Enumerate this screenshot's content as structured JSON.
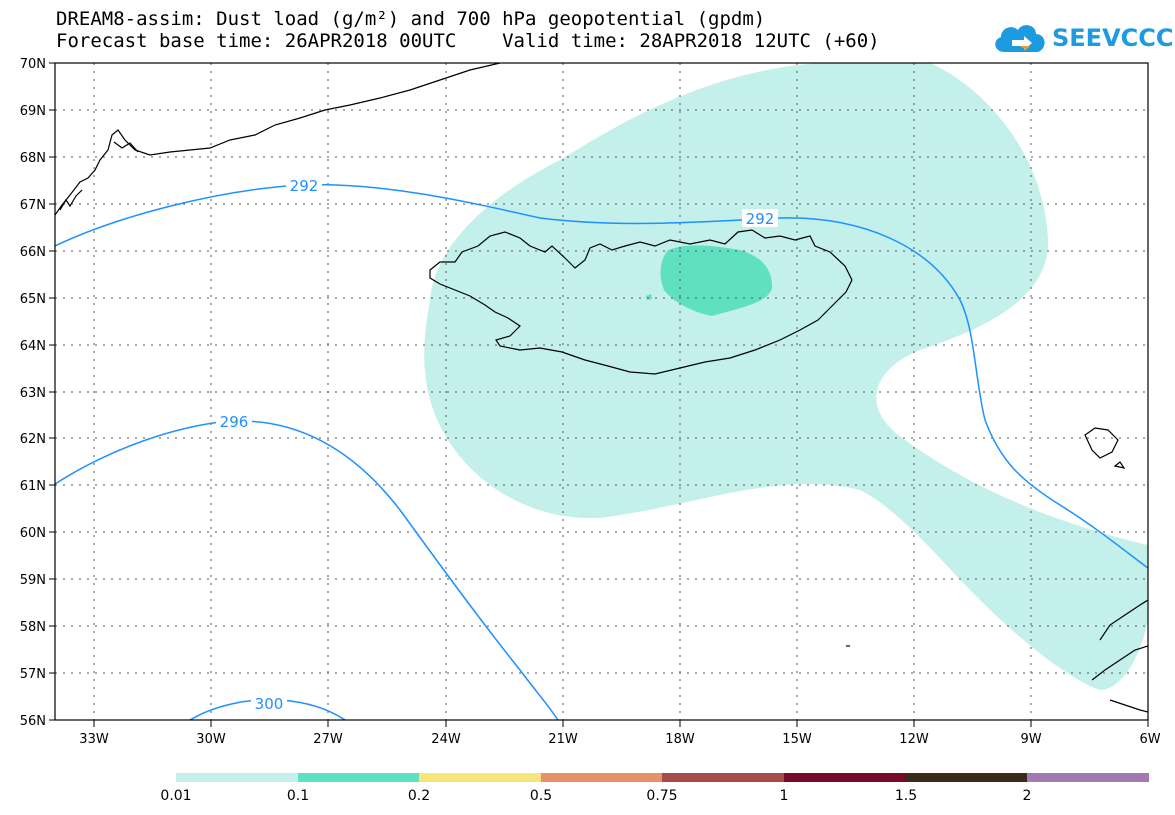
{
  "title": {
    "line1": "DREAM8-assim: Dust load (g/m²) and 700 hPa geopotential (gpdm)",
    "line2": "Forecast base time: 26APR2018 00UTC    Valid time: 28APR2018 12UTC (+60)"
  },
  "logo": {
    "text": "SEEVCCC",
    "icon": "cloud-icon"
  },
  "map": {
    "lon_range": [
      -34.5,
      -6
    ],
    "lat_range": [
      56,
      70
    ],
    "grid": true,
    "lat_labels": [
      "70N",
      "69N",
      "68N",
      "67N",
      "66N",
      "65N",
      "64N",
      "63N",
      "62N",
      "61N",
      "60N",
      "59N",
      "58N",
      "57N",
      "56N"
    ],
    "lon_labels": [
      "33W",
      "30W",
      "27W",
      "24W",
      "21W",
      "18W",
      "15W",
      "12W",
      "9W",
      "6W"
    ],
    "contour_labels": [
      "292",
      "292",
      "296",
      "300"
    ],
    "colors": {
      "contour_line": "#1e90ff",
      "coastline": "#000000",
      "dust_low": "#c3f0ea",
      "dust_mid": "#5fe0c0"
    }
  },
  "colorbar": {
    "labels": [
      "0.01",
      "0.1",
      "0.2",
      "0.5",
      "0.75",
      "1",
      "1.5",
      "2"
    ],
    "colors": [
      "#c3f0ea",
      "#5fe0c0",
      "#f5e67a",
      "#e8906a",
      "#a84a45",
      "#7a0a2a",
      "#3a2a1a",
      "#a07ab0"
    ]
  }
}
